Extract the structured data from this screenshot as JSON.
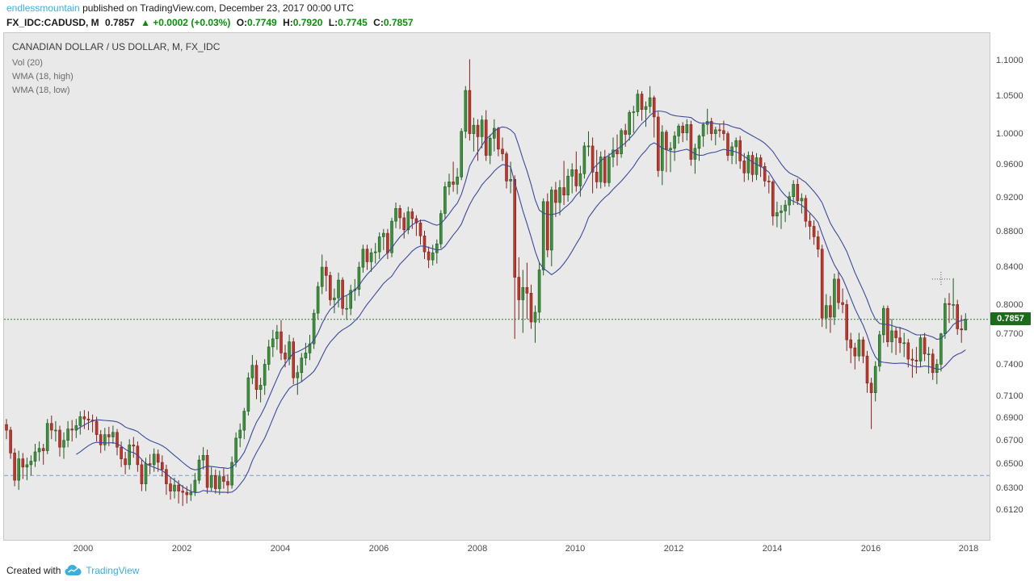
{
  "colors": {
    "accent_link": "#3bace0",
    "green_text": "#0b8f0b",
    "up": "#3f8f3f",
    "up_border": "#1e5c1e",
    "down": "#b8392f",
    "down_border": "#7e221c",
    "wma": "#3c4a99",
    "chart_bg": "#e9e9e9",
    "price_line": "#2d7f2d",
    "price_tag_bg": "#1d6b1d",
    "level_line": "#7a9cc6",
    "crosshair": "#555555"
  },
  "header": {
    "username": "endlessmountain",
    "published": "published on TradingView.com, December 23, 2017 00:00 UTC"
  },
  "symbol_bar": {
    "symbol": "FX_IDC:CADUSD, M",
    "last": "0.7857",
    "change": "▲ +0.0002 (+0.03%)",
    "o_label": "O:",
    "o": "0.7749",
    "h_label": "H:",
    "h": "0.7920",
    "l_label": "L:",
    "l": "0.7745",
    "c_label": "C:",
    "c": "0.7857"
  },
  "legend": {
    "title": "CANADIAN DOLLAR / US DOLLAR, M, FX_IDC",
    "indicators": [
      "Vol (20)",
      "WMA (18, high)",
      "WMA (18, low)"
    ]
  },
  "footer": {
    "created_with": "Created with",
    "brand": "TradingView"
  },
  "chart_data": {
    "type": "candlestick",
    "symbol": "CADUSD",
    "interval": "1M",
    "scale": "log",
    "start": "1998-06",
    "first_open": 0.685,
    "last_price": 0.7857,
    "last_price_label": "0.7857",
    "support_level": 0.641,
    "crosshair": {
      "date": "2017-06",
      "price": 0.828
    },
    "overlays": [
      {
        "type": "wma",
        "length": 18,
        "source": "high"
      },
      {
        "type": "wma",
        "length": 18,
        "source": "low"
      }
    ],
    "price_axis_ticks": [
      "1.1000",
      "1.0500",
      "1.0000",
      "0.9600",
      "0.9200",
      "0.8800",
      "0.8400",
      "0.8000",
      "0.7700",
      "0.7400",
      "0.7100",
      "0.6900",
      "0.6700",
      "0.6500",
      "0.6300",
      "0.6120"
    ],
    "time_axis_ticks": [
      2000,
      2002,
      2004,
      2006,
      2008,
      2010,
      2012,
      2014,
      2016,
      2018
    ],
    "candles_by_year": {
      "1998": [
        [
          0.69,
          0.672,
          0.68
        ],
        [
          0.683,
          0.655,
          0.66
        ],
        [
          0.664,
          0.632,
          0.637
        ],
        [
          0.662,
          0.629,
          0.655
        ],
        [
          0.66,
          0.638,
          0.648
        ],
        [
          0.656,
          0.637,
          0.65
        ],
        [
          0.658,
          0.641,
          0.653
        ]
      ],
      "1999": [
        [
          0.668,
          0.648,
          0.661
        ],
        [
          0.67,
          0.653,
          0.664
        ],
        [
          0.668,
          0.65,
          0.662
        ],
        [
          0.69,
          0.659,
          0.686
        ],
        [
          0.693,
          0.672,
          0.68
        ],
        [
          0.688,
          0.67,
          0.68
        ],
        [
          0.684,
          0.657,
          0.665
        ],
        [
          0.678,
          0.655,
          0.671
        ],
        [
          0.688,
          0.665,
          0.681
        ],
        [
          0.689,
          0.67,
          0.68
        ],
        [
          0.69,
          0.673,
          0.684
        ],
        [
          0.697,
          0.676,
          0.692
        ]
      ],
      "2000": [
        [
          0.698,
          0.681,
          0.69
        ],
        [
          0.697,
          0.68,
          0.689
        ],
        [
          0.694,
          0.678,
          0.688
        ],
        [
          0.692,
          0.67,
          0.676
        ],
        [
          0.68,
          0.66,
          0.667
        ],
        [
          0.682,
          0.662,
          0.676
        ],
        [
          0.683,
          0.666,
          0.674
        ],
        [
          0.684,
          0.668,
          0.678
        ],
        [
          0.681,
          0.658,
          0.665
        ],
        [
          0.67,
          0.648,
          0.655
        ],
        [
          0.661,
          0.642,
          0.65
        ],
        [
          0.672,
          0.646,
          0.667
        ]
      ],
      "2001": [
        [
          0.674,
          0.656,
          0.666
        ],
        [
          0.67,
          0.644,
          0.65
        ],
        [
          0.655,
          0.628,
          0.634
        ],
        [
          0.656,
          0.628,
          0.651
        ],
        [
          0.659,
          0.642,
          0.65
        ],
        [
          0.664,
          0.644,
          0.659
        ],
        [
          0.663,
          0.644,
          0.652
        ],
        [
          0.658,
          0.64,
          0.646
        ],
        [
          0.65,
          0.625,
          0.634
        ],
        [
          0.64,
          0.621,
          0.628
        ],
        [
          0.639,
          0.622,
          0.633
        ],
        [
          0.637,
          0.618,
          0.628
        ]
      ],
      "2002": [
        [
          0.633,
          0.616,
          0.627
        ],
        [
          0.632,
          0.618,
          0.625
        ],
        [
          0.634,
          0.62,
          0.627
        ],
        [
          0.643,
          0.624,
          0.637
        ],
        [
          0.658,
          0.634,
          0.654
        ],
        [
          0.665,
          0.646,
          0.658
        ],
        [
          0.663,
          0.626,
          0.631
        ],
        [
          0.648,
          0.628,
          0.641
        ],
        [
          0.646,
          0.626,
          0.63
        ],
        [
          0.645,
          0.625,
          0.64
        ],
        [
          0.647,
          0.63,
          0.636
        ],
        [
          0.642,
          0.626,
          0.633
        ]
      ],
      "2003": [
        [
          0.657,
          0.63,
          0.652
        ],
        [
          0.678,
          0.648,
          0.673
        ],
        [
          0.686,
          0.665,
          0.68
        ],
        [
          0.7,
          0.672,
          0.697
        ],
        [
          0.733,
          0.693,
          0.728
        ],
        [
          0.75,
          0.722,
          0.74
        ],
        [
          0.745,
          0.708,
          0.717
        ],
        [
          0.728,
          0.705,
          0.721
        ],
        [
          0.746,
          0.712,
          0.741
        ],
        [
          0.765,
          0.735,
          0.758
        ],
        [
          0.775,
          0.748,
          0.766
        ],
        [
          0.78,
          0.755,
          0.773
        ]
      ],
      "2004": [
        [
          0.785,
          0.745,
          0.752
        ],
        [
          0.76,
          0.738,
          0.746
        ],
        [
          0.77,
          0.74,
          0.763
        ],
        [
          0.767,
          0.722,
          0.728
        ],
        [
          0.74,
          0.712,
          0.733
        ],
        [
          0.752,
          0.724,
          0.747
        ],
        [
          0.762,
          0.74,
          0.752
        ],
        [
          0.77,
          0.745,
          0.761
        ],
        [
          0.796,
          0.756,
          0.792
        ],
        [
          0.825,
          0.786,
          0.82
        ],
        [
          0.855,
          0.812,
          0.841
        ],
        [
          0.848,
          0.815,
          0.832
        ]
      ],
      "2005": [
        [
          0.836,
          0.8,
          0.806
        ],
        [
          0.818,
          0.792,
          0.808
        ],
        [
          0.835,
          0.798,
          0.827
        ],
        [
          0.83,
          0.79,
          0.797
        ],
        [
          0.81,
          0.785,
          0.797
        ],
        [
          0.822,
          0.79,
          0.816
        ],
        [
          0.828,
          0.805,
          0.817
        ],
        [
          0.847,
          0.81,
          0.841
        ],
        [
          0.866,
          0.835,
          0.861
        ],
        [
          0.866,
          0.838,
          0.847
        ],
        [
          0.862,
          0.836,
          0.857
        ],
        [
          0.868,
          0.845,
          0.858
        ]
      ],
      "2006": [
        [
          0.88,
          0.85,
          0.875
        ],
        [
          0.884,
          0.86,
          0.879
        ],
        [
          0.884,
          0.85,
          0.857
        ],
        [
          0.897,
          0.852,
          0.893
        ],
        [
          0.915,
          0.885,
          0.908
        ],
        [
          0.912,
          0.884,
          0.897
        ],
        [
          0.903,
          0.873,
          0.883
        ],
        [
          0.91,
          0.878,
          0.904
        ],
        [
          0.908,
          0.884,
          0.896
        ],
        [
          0.9,
          0.876,
          0.891
        ],
        [
          0.895,
          0.866,
          0.876
        ],
        [
          0.882,
          0.85,
          0.858
        ]
      ],
      "2007": [
        [
          0.864,
          0.84,
          0.849
        ],
        [
          0.866,
          0.843,
          0.857
        ],
        [
          0.872,
          0.845,
          0.867
        ],
        [
          0.906,
          0.862,
          0.902
        ],
        [
          0.94,
          0.896,
          0.934
        ],
        [
          0.95,
          0.924,
          0.94
        ],
        [
          0.965,
          0.928,
          0.937
        ],
        [
          0.957,
          0.925,
          0.946
        ],
        [
          1.008,
          0.942,
          1.004
        ],
        [
          1.065,
          0.995,
          1.059
        ],
        [
          1.103,
          0.992,
          1.001
        ],
        [
          1.022,
          0.978,
          1.012
        ]
      ],
      "2008": [
        [
          1.02,
          0.966,
          0.997
        ],
        [
          1.025,
          0.982,
          1.019
        ],
        [
          1.032,
          0.966,
          0.973
        ],
        [
          1.0,
          0.962,
          0.995
        ],
        [
          1.02,
          0.978,
          1.008
        ],
        [
          1.01,
          0.972,
          0.981
        ],
        [
          0.996,
          0.966,
          0.975
        ],
        [
          0.978,
          0.932,
          0.941
        ],
        [
          0.965,
          0.926,
          0.943
        ],
        [
          0.948,
          0.766,
          0.83
        ],
        [
          0.852,
          0.786,
          0.806
        ],
        [
          0.838,
          0.772,
          0.819
        ]
      ],
      "2009": [
        [
          0.846,
          0.786,
          0.813
        ],
        [
          0.822,
          0.776,
          0.783
        ],
        [
          0.8,
          0.762,
          0.793
        ],
        [
          0.846,
          0.782,
          0.838
        ],
        [
          0.92,
          0.832,
          0.916
        ],
        [
          0.926,
          0.852,
          0.86
        ],
        [
          0.934,
          0.842,
          0.93
        ],
        [
          0.94,
          0.898,
          0.915
        ],
        [
          0.942,
          0.9,
          0.933
        ],
        [
          0.966,
          0.912,
          0.924
        ],
        [
          0.956,
          0.916,
          0.947
        ],
        [
          0.963,
          0.926,
          0.955
        ]
      ],
      "2010": [
        [
          0.978,
          0.928,
          0.935
        ],
        [
          0.96,
          0.922,
          0.95
        ],
        [
          0.99,
          0.944,
          0.985
        ],
        [
          1.004,
          0.972,
          0.985
        ],
        [
          0.996,
          0.926,
          0.952
        ],
        [
          0.98,
          0.932,
          0.94
        ],
        [
          0.978,
          0.932,
          0.971
        ],
        [
          0.98,
          0.934,
          0.939
        ],
        [
          0.976,
          0.934,
          0.971
        ],
        [
          0.996,
          0.958,
          0.98
        ],
        [
          1.0,
          0.96,
          0.975
        ],
        [
          1.008,
          0.97,
          1.005
        ]
      ],
      "2011": [
        [
          1.014,
          0.984,
          1.0
        ],
        [
          1.032,
          0.992,
          1.029
        ],
        [
          1.038,
          1.002,
          1.03
        ],
        [
          1.06,
          1.024,
          1.054
        ],
        [
          1.058,
          1.018,
          1.033
        ],
        [
          1.044,
          1.01,
          1.037
        ],
        [
          1.065,
          1.028,
          1.049
        ],
        [
          1.052,
          0.996,
          1.023
        ],
        [
          1.03,
          0.946,
          0.954
        ],
        [
          1.012,
          0.936,
          1.003
        ],
        [
          1.006,
          0.952,
          0.98
        ],
        [
          0.99,
          0.952,
          0.982
        ]
      ],
      "2012": [
        [
          1.004,
          0.966,
          0.998
        ],
        [
          1.014,
          0.988,
          1.011
        ],
        [
          1.016,
          0.99,
          1.002
        ],
        [
          1.02,
          0.992,
          1.013
        ],
        [
          1.018,
          0.96,
          0.968
        ],
        [
          0.988,
          0.95,
          0.982
        ],
        [
          1.0,
          0.966,
          0.998
        ],
        [
          1.016,
          0.984,
          1.013
        ],
        [
          1.034,
          1.0,
          1.017
        ],
        [
          1.022,
          0.992,
          1.001
        ],
        [
          1.01,
          0.986,
          1.006
        ],
        [
          1.014,
          0.996,
          1.005
        ]
      ],
      "2013": [
        [
          1.018,
          0.992,
          1.001
        ],
        [
          1.004,
          0.966,
          0.973
        ],
        [
          0.99,
          0.962,
          0.984
        ],
        [
          0.996,
          0.962,
          0.992
        ],
        [
          0.998,
          0.956,
          0.966
        ],
        [
          0.976,
          0.94,
          0.951
        ],
        [
          0.978,
          0.942,
          0.973
        ],
        [
          0.978,
          0.94,
          0.949
        ],
        [
          0.976,
          0.942,
          0.97
        ],
        [
          0.974,
          0.946,
          0.959
        ],
        [
          0.964,
          0.934,
          0.941
        ],
        [
          0.948,
          0.926,
          0.94
        ]
      ],
      "2014": [
        [
          0.942,
          0.888,
          0.899
        ],
        [
          0.916,
          0.886,
          0.903
        ],
        [
          0.912,
          0.884,
          0.905
        ],
        [
          0.918,
          0.892,
          0.912
        ],
        [
          0.928,
          0.9,
          0.922
        ],
        [
          0.942,
          0.912,
          0.937
        ],
        [
          0.944,
          0.912,
          0.917
        ],
        [
          0.926,
          0.902,
          0.92
        ],
        [
          0.924,
          0.886,
          0.893
        ],
        [
          0.902,
          0.872,
          0.887
        ],
        [
          0.894,
          0.866,
          0.875
        ],
        [
          0.882,
          0.852,
          0.861
        ]
      ],
      "2015": [
        [
          0.866,
          0.778,
          0.787
        ],
        [
          0.812,
          0.776,
          0.8
        ],
        [
          0.81,
          0.772,
          0.788
        ],
        [
          0.834,
          0.78,
          0.828
        ],
        [
          0.836,
          0.796,
          0.803
        ],
        [
          0.818,
          0.792,
          0.801
        ],
        [
          0.806,
          0.754,
          0.765
        ],
        [
          0.772,
          0.742,
          0.757
        ],
        [
          0.762,
          0.736,
          0.749
        ],
        [
          0.772,
          0.744,
          0.765
        ],
        [
          0.768,
          0.742,
          0.749
        ],
        [
          0.754,
          0.714,
          0.723
        ]
      ],
      "2016": [
        [
          0.728,
          0.681,
          0.714
        ],
        [
          0.744,
          0.706,
          0.739
        ],
        [
          0.774,
          0.734,
          0.77
        ],
        [
          0.8,
          0.762,
          0.797
        ],
        [
          0.8,
          0.758,
          0.763
        ],
        [
          0.786,
          0.752,
          0.774
        ],
        [
          0.778,
          0.75,
          0.767
        ],
        [
          0.778,
          0.752,
          0.762
        ],
        [
          0.772,
          0.748,
          0.762
        ],
        [
          0.766,
          0.738,
          0.746
        ],
        [
          0.756,
          0.728,
          0.745
        ],
        [
          0.758,
          0.732,
          0.744
        ]
      ],
      "2017": [
        [
          0.77,
          0.738,
          0.767
        ],
        [
          0.772,
          0.744,
          0.751
        ],
        [
          0.758,
          0.732,
          0.751
        ],
        [
          0.756,
          0.726,
          0.733
        ],
        [
          0.746,
          0.722,
          0.741
        ],
        [
          0.772,
          0.734,
          0.771
        ],
        [
          0.808,
          0.766,
          0.802
        ],
        [
          0.813,
          0.782,
          0.801
        ],
        [
          0.829,
          0.786,
          0.801
        ],
        [
          0.806,
          0.77,
          0.776
        ],
        [
          0.79,
          0.762,
          0.7749
        ],
        [
          0.792,
          0.7745,
          0.7857
        ]
      ]
    }
  }
}
